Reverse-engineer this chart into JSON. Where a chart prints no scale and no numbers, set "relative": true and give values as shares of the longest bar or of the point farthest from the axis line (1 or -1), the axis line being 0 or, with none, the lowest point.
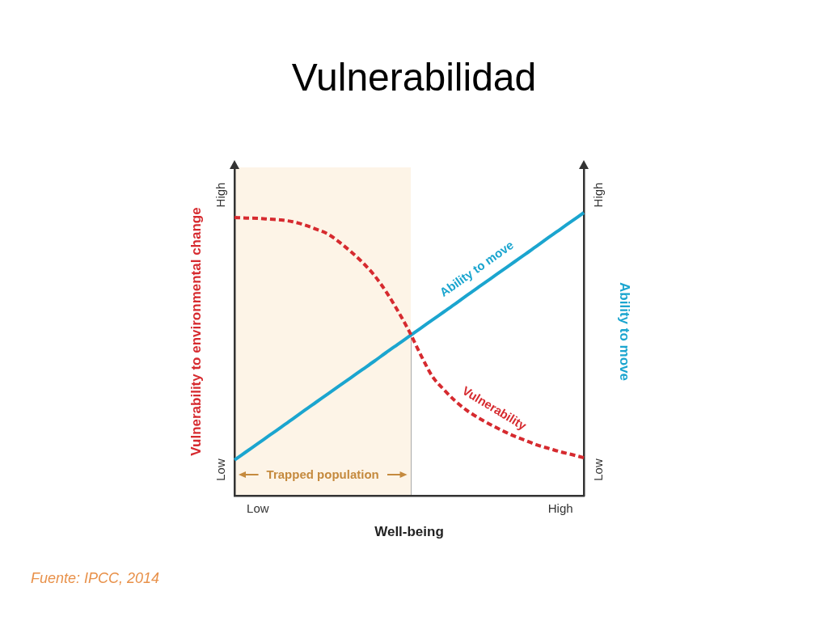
{
  "chart_data": {
    "type": "line",
    "title": "Vulnerabilidad",
    "xlabel": "Well-being",
    "ylabel": "Vulnerability to environmental change",
    "y2label": "Ability to move",
    "relative": true,
    "marker": "none",
    "categories": [
      null,
      null,
      "Low",
      null,
      null,
      null,
      null,
      null,
      null,
      null,
      null,
      null,
      null,
      null,
      null,
      null,
      null,
      null,
      null,
      null,
      null,
      null,
      null,
      null,
      null,
      null,
      null,
      null,
      "High",
      null,
      null
    ],
    "series": [
      {
        "name": "Vulnerability",
        "color": "#d62a2f",
        "line_style": "dashed",
        "values": [
          0.983,
          0.981,
          0.98,
          0.977,
          0.974,
          0.968,
          0.957,
          0.942,
          0.925,
          0.896,
          0.862,
          0.824,
          0.779,
          0.722,
          0.655,
          0.581,
          0.497,
          0.421,
          0.374,
          0.333,
          0.3,
          0.274,
          0.251,
          0.23,
          0.211,
          0.195,
          0.179,
          0.167,
          0.155,
          0.145,
          0.134
        ]
      },
      {
        "name": "Ability to move",
        "color": "#1ba5cf",
        "line_style": "solid",
        "axis": "y2",
        "values": [
          0.126,
          0.155,
          0.184,
          0.213,
          0.242,
          0.271,
          0.301,
          0.33,
          0.359,
          0.388,
          0.417,
          0.446,
          0.475,
          0.505,
          0.534,
          0.563,
          0.592,
          0.621,
          0.65,
          0.679,
          0.709,
          0.738,
          0.767,
          0.796,
          0.825,
          0.854,
          0.883,
          0.913,
          0.942,
          0.971,
          1.0
        ]
      }
    ],
    "annotations": [
      "Trapped population",
      "High",
      "Low",
      "High",
      "Low",
      "Fuente: IPCC, 2014"
    ]
  }
}
